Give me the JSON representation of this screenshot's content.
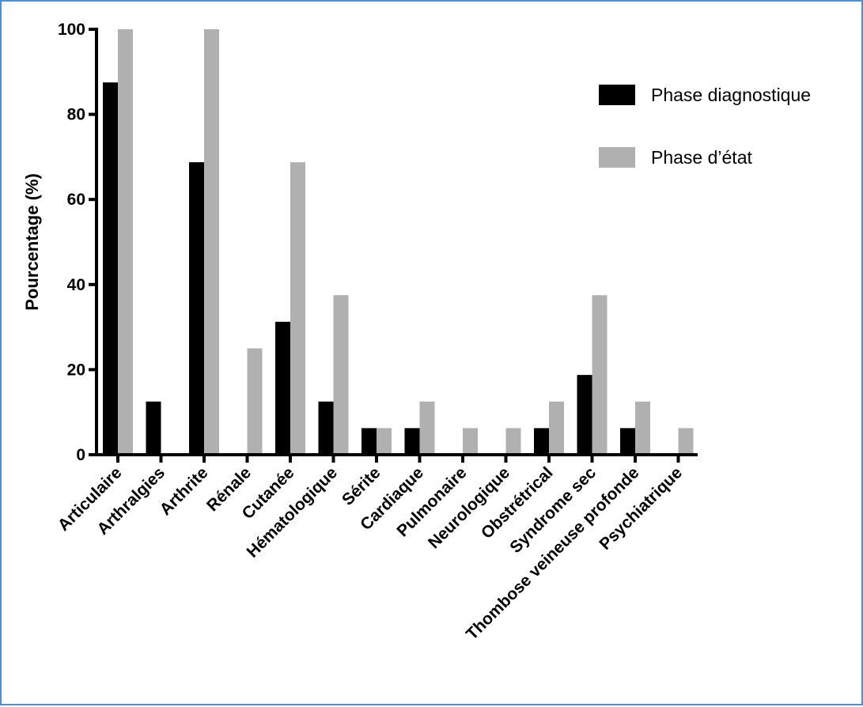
{
  "chart_data": {
    "type": "bar",
    "ylabel": "Pourcentage (%)",
    "xlabel": "",
    "ylim": [
      0,
      100
    ],
    "yticks": [
      0,
      20,
      40,
      60,
      80,
      100
    ],
    "legend_position": "top-right",
    "grid": false,
    "categories": [
      "Articulaire",
      "Arthralgies",
      "Arthrite",
      "Rénale",
      "Cutanée",
      "Hématologique",
      "Sérite",
      "Cardiaque",
      "Pulmonaire",
      "Neurologique",
      "Obstrétrical",
      "Syndrome sec",
      "Thombose veineuse profonde",
      "Psychiatrique"
    ],
    "series": [
      {
        "name": "Phase diagnostique",
        "color": "#000000",
        "values": [
          87.5,
          12.5,
          68.75,
          0,
          31.25,
          12.5,
          6.25,
          6.25,
          0,
          0,
          6.25,
          18.75,
          6.25,
          0
        ]
      },
      {
        "name": "Phase d’état",
        "color": "#b0b0b0",
        "values": [
          100,
          0,
          100,
          25,
          68.75,
          37.5,
          6.25,
          12.5,
          6.25,
          6.25,
          12.5,
          37.5,
          12.5,
          6.25
        ]
      }
    ]
  }
}
